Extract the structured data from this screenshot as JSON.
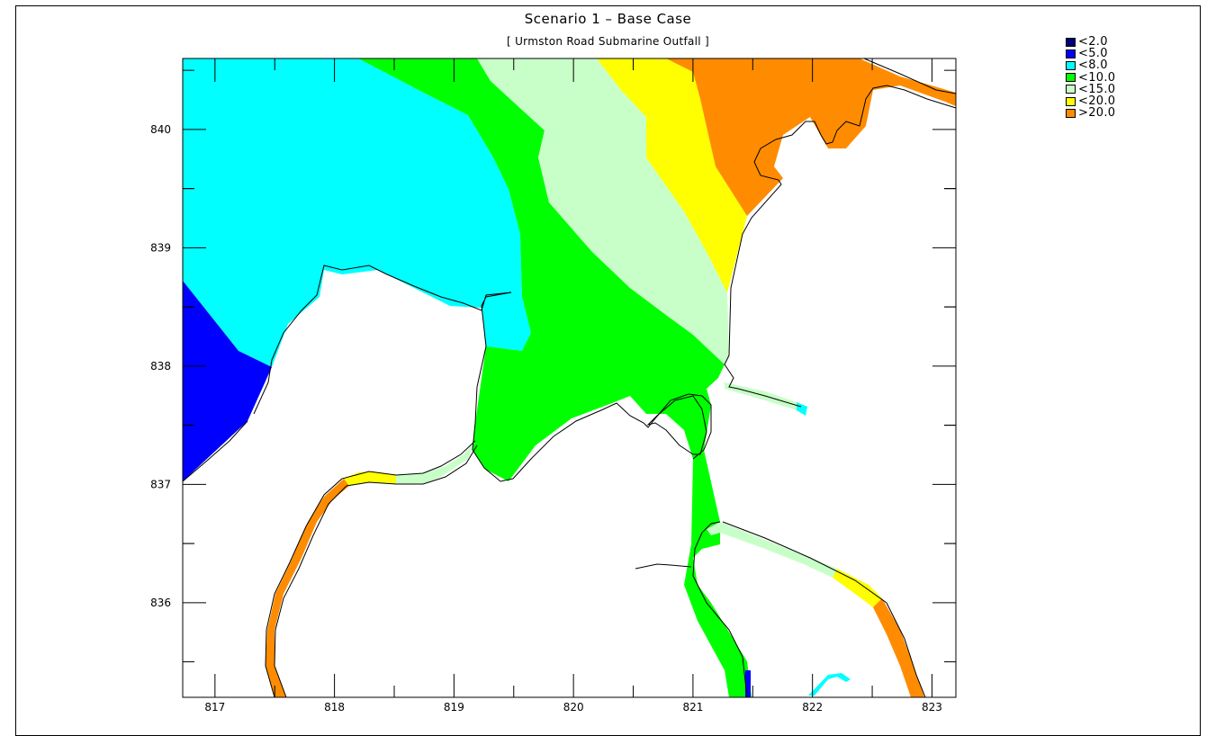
{
  "title": "Scenario 1 – Base Case",
  "subtitle": "[ Urmston Road Submarine Outfall ]",
  "x_axis": {
    "ticks": [
      "817",
      "818",
      "819",
      "820",
      "821",
      "822",
      "823"
    ],
    "range": [
      816.73,
      823.2
    ]
  },
  "y_axis": {
    "ticks": [
      "840",
      "839",
      "838",
      "837",
      "836"
    ],
    "range": [
      835.2,
      840.6
    ]
  },
  "legend": [
    {
      "label": "<2.0",
      "color": "#00007a"
    },
    {
      "label": "<5.0",
      "color": "#0000ff"
    },
    {
      "label": "<8.0",
      "color": "#00ffff"
    },
    {
      "label": "<10.0",
      "color": "#00ff00"
    },
    {
      "label": "<15.0",
      "color": "#c8ffc8"
    },
    {
      "label": "<20.0",
      "color": "#ffff00"
    },
    {
      "label": ">20.0",
      "color": "#ff8c00"
    }
  ]
}
